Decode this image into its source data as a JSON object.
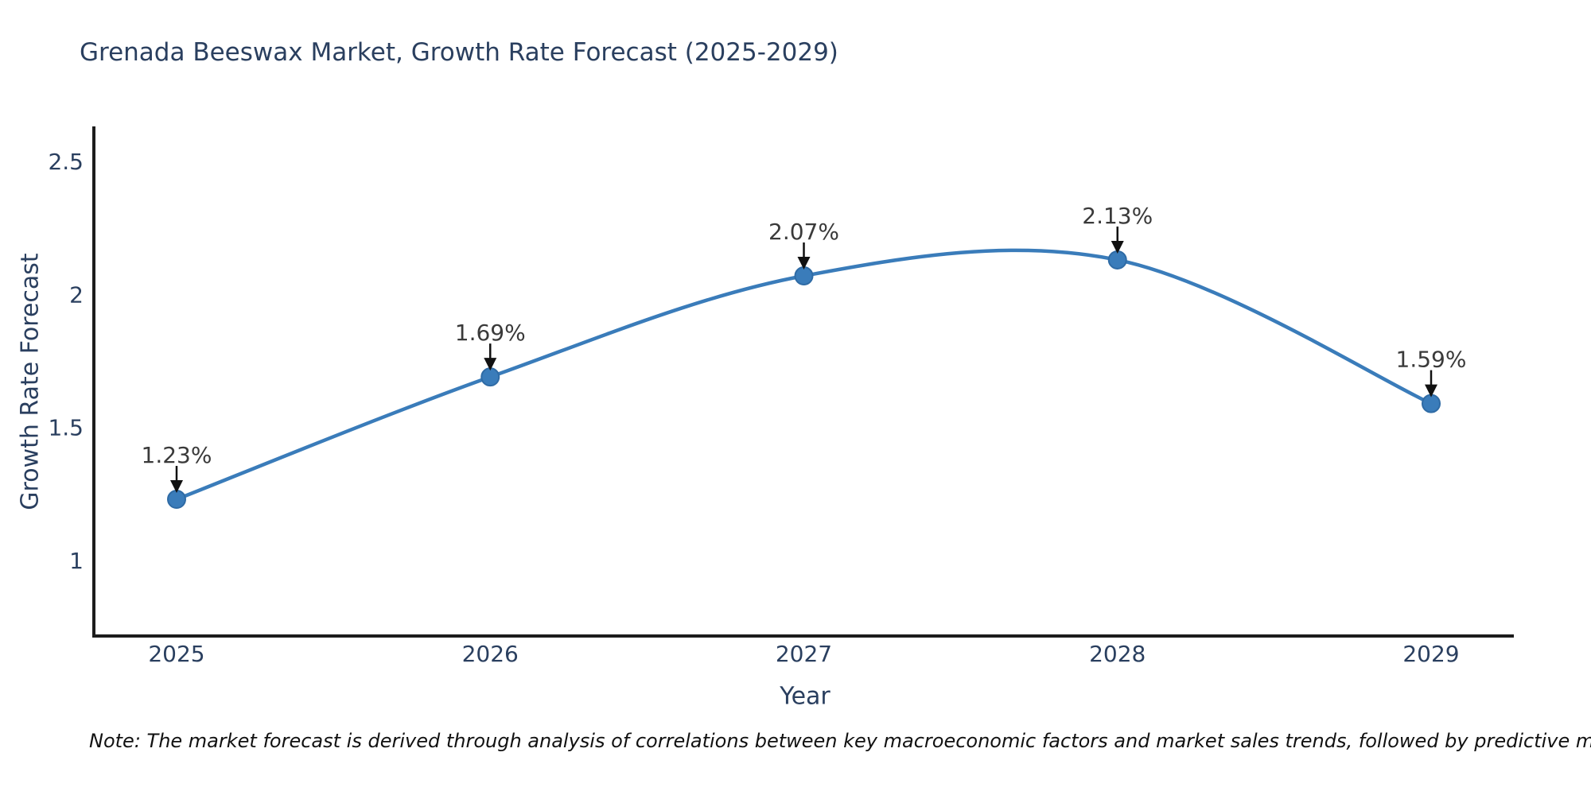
{
  "page": {
    "title": "Grenada Beeswax Market, Growth Rate Forecast (2025-2029)",
    "note": "Note: The market forecast is derived through analysis of correlations between key macroeconomic factors and market sales trends, followed by predictive modeling to project future sales"
  },
  "chart_data": {
    "type": "line",
    "title": "Grenada Beeswax Market, Growth Rate Forecast (2025-2029)",
    "xlabel": "Year",
    "ylabel": "Growth Rate Forecast",
    "categories": [
      "2025",
      "2026",
      "2027",
      "2028",
      "2029"
    ],
    "series": [
      {
        "name": "Growth Rate Forecast",
        "values": [
          1.23,
          1.69,
          2.07,
          2.13,
          1.59
        ]
      }
    ],
    "point_labels": [
      "1.23%",
      "1.69%",
      "2.07%",
      "2.13%",
      "1.59%"
    ],
    "yticks": [
      1,
      1.5,
      2,
      2.5
    ],
    "ylim": [
      0.716,
      2.632
    ],
    "line_shape": "spline",
    "grid": false,
    "legend_position": "none",
    "annotations": "black arrows pointing down from each percentage label to its data point",
    "colors": {
      "line": "#3a7cba",
      "marker": "#3a7cba",
      "marker_edge": "#2f6ba5",
      "axis_line": "#1c1c1c",
      "tick_text": "#2a3f5f",
      "annotation_text": "#3a3a3a",
      "arrow": "#111111",
      "background": "#ffffff"
    }
  }
}
